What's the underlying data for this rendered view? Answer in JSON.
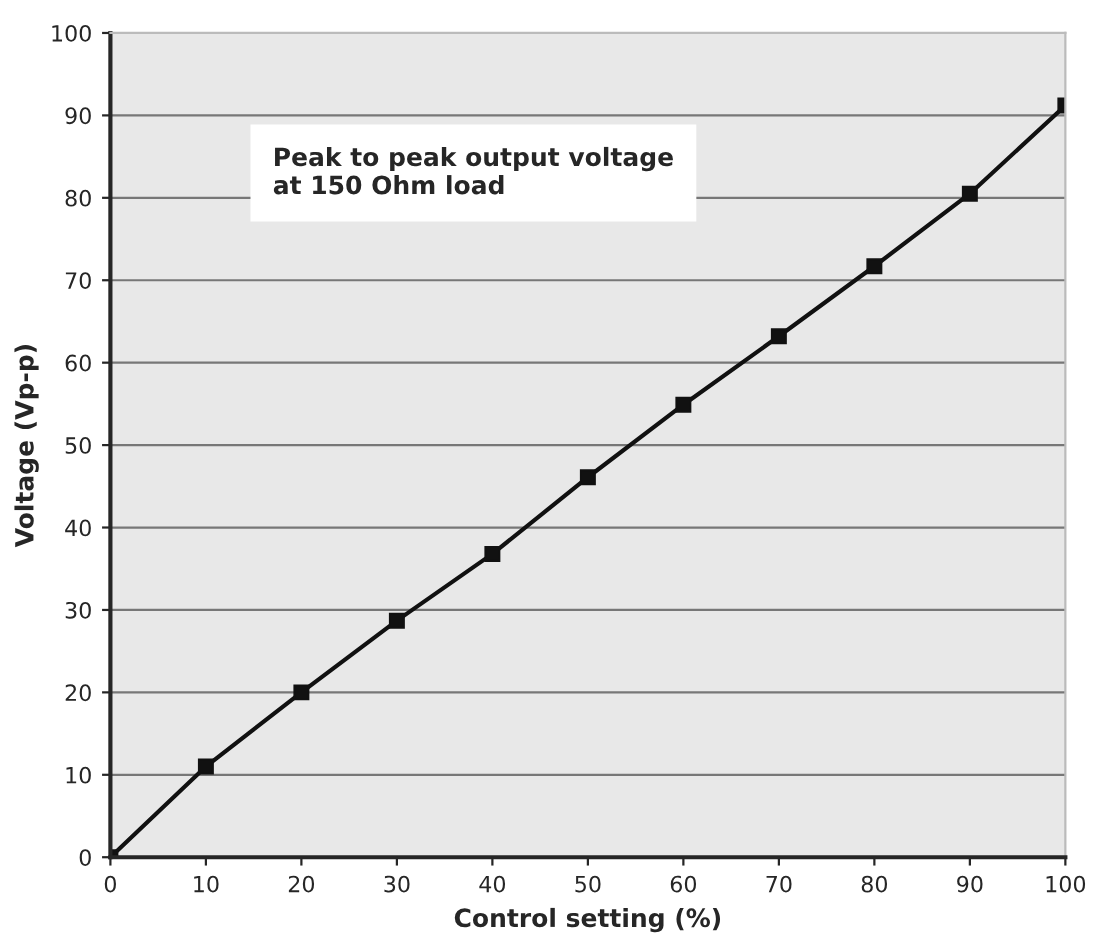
{
  "chart_data": {
    "type": "line",
    "xlabel": "Control setting (%)",
    "ylabel": "Voltage (Vp-p)",
    "annotations": [
      "Peak to peak output voltage\nat 150 Ohm load"
    ],
    "x": [
      0,
      10,
      20,
      30,
      40,
      50,
      60,
      70,
      80,
      90,
      100
    ],
    "series": [
      {
        "color": "#111111",
        "values": [
          0,
          11,
          20,
          28.7,
          36.8,
          46.1,
          54.9,
          63.2,
          71.7,
          80.5,
          91.2
        ]
      }
    ],
    "xlim": [
      0,
      100
    ],
    "ylim": [
      0,
      100
    ],
    "xticks": [
      0,
      10,
      20,
      30,
      40,
      50,
      60,
      70,
      80,
      90,
      100
    ],
    "yticks": [
      0,
      10,
      20,
      30,
      40,
      50,
      60,
      70,
      80,
      90,
      100
    ],
    "grid": "y",
    "marker": "square",
    "line_style": "solid"
  }
}
